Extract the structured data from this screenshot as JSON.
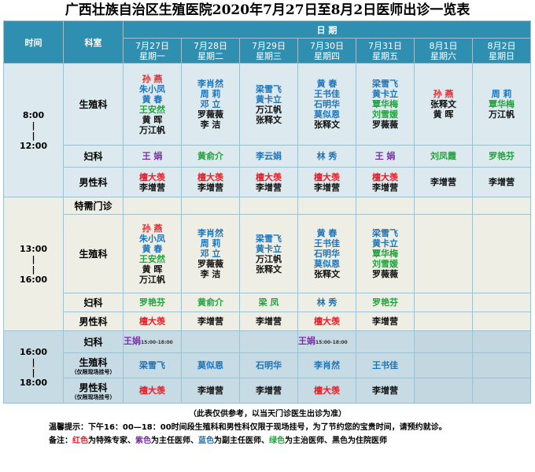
{
  "title": "广西壮族自治区生殖医院2020年7月27日至8月2日医师出诊一览表",
  "header": {
    "time": "时间",
    "dept": "科室",
    "date_label": "日  期",
    "days": [
      {
        "date": "7月27日",
        "week": "星期一"
      },
      {
        "date": "7月28日",
        "week": "星期二"
      },
      {
        "date": "7月29日",
        "week": "星期三"
      },
      {
        "date": "7月30日",
        "week": "星期四"
      },
      {
        "date": "7月31日",
        "week": "星期五"
      },
      {
        "date": "8月1日",
        "week": "星期六"
      },
      {
        "date": "8月2日",
        "week": "星期日"
      }
    ]
  },
  "morning": {
    "time_start": "8:00",
    "time_end": "12:00",
    "rows": [
      {
        "dept": "生殖科",
        "cells": [
          [
            {
              "n": "孙  燕",
              "c": "red"
            },
            {
              "n": "朱小凤",
              "c": "blue"
            },
            {
              "n": "黄  春",
              "c": "blue"
            },
            {
              "n": "王安然",
              "c": "green"
            },
            {
              "n": "黄  晖",
              "c": "black"
            },
            {
              "n": "万江帆",
              "c": "black"
            }
          ],
          [
            {
              "n": "李肖然",
              "c": "blue"
            },
            {
              "n": "周  莉",
              "c": "blue"
            },
            {
              "n": "邓  立",
              "c": "blue"
            },
            {
              "n": "罗薇薇",
              "c": "black"
            },
            {
              "n": "李  洁",
              "c": "black"
            }
          ],
          [
            {
              "n": "梁雪飞",
              "c": "blue"
            },
            {
              "n": "黄卡立",
              "c": "blue"
            },
            {
              "n": "万江帆",
              "c": "black"
            },
            {
              "n": "张释文",
              "c": "black"
            }
          ],
          [
            {
              "n": "黄  春",
              "c": "blue"
            },
            {
              "n": "王书佳",
              "c": "blue"
            },
            {
              "n": "石明华",
              "c": "blue"
            },
            {
              "n": "莫似恩",
              "c": "blue"
            },
            {
              "n": "张释文",
              "c": "black"
            }
          ],
          [
            {
              "n": "梁雪飞",
              "c": "blue"
            },
            {
              "n": "黄卡立",
              "c": "blue"
            },
            {
              "n": "覃华梅",
              "c": "green"
            },
            {
              "n": "刘雪媛",
              "c": "green"
            },
            {
              "n": "罗薇薇",
              "c": "black"
            }
          ],
          [
            {
              "n": "孙  燕",
              "c": "red"
            },
            {
              "n": "张释文",
              "c": "black"
            },
            {
              "n": "黄  晖",
              "c": "black"
            }
          ],
          [
            {
              "n": "周  莉",
              "c": "blue"
            },
            {
              "n": "覃华梅",
              "c": "green"
            },
            {
              "n": "万江帆",
              "c": "black"
            }
          ]
        ]
      },
      {
        "dept": "妇科",
        "cells": [
          [
            {
              "n": "王  娟",
              "c": "purple"
            }
          ],
          [
            {
              "n": "黄俞介",
              "c": "green"
            }
          ],
          [
            {
              "n": "李云娟",
              "c": "blue"
            }
          ],
          [
            {
              "n": "林  秀",
              "c": "blue"
            }
          ],
          [
            {
              "n": "王  娟",
              "c": "purple"
            }
          ],
          [
            {
              "n": "刘凤霞",
              "c": "green"
            }
          ],
          [
            {
              "n": "罗艳芬",
              "c": "green"
            }
          ]
        ]
      },
      {
        "dept": "男性科",
        "cells": [
          [
            {
              "n": "檀大羡",
              "c": "red"
            },
            {
              "n": "李增营",
              "c": "black"
            }
          ],
          [
            {
              "n": "檀大羡",
              "c": "red"
            },
            {
              "n": "李增营",
              "c": "black"
            }
          ],
          [
            {
              "n": "檀大羡",
              "c": "red"
            },
            {
              "n": "李增营",
              "c": "black"
            }
          ],
          [
            {
              "n": "檀大羡",
              "c": "red"
            },
            {
              "n": "李增营",
              "c": "black"
            }
          ],
          [
            {
              "n": "檀大羡",
              "c": "red"
            },
            {
              "n": "李增营",
              "c": "black"
            }
          ],
          [
            {
              "n": "李增营",
              "c": "black"
            }
          ],
          [
            {
              "n": "李增营",
              "c": "black"
            }
          ]
        ]
      }
    ]
  },
  "afternoon": {
    "time_start": "13:00",
    "time_end": "16:00",
    "special_label": "特需门诊",
    "rows": [
      {
        "dept": "生殖科",
        "cells": [
          [
            {
              "n": "孙  燕",
              "c": "red"
            },
            {
              "n": "朱小凤",
              "c": "blue"
            },
            {
              "n": "黄  春",
              "c": "blue"
            },
            {
              "n": "王安然",
              "c": "green"
            },
            {
              "n": "黄  晖",
              "c": "black"
            },
            {
              "n": "万江帆",
              "c": "black"
            }
          ],
          [
            {
              "n": "李肖然",
              "c": "blue"
            },
            {
              "n": "周  莉",
              "c": "blue"
            },
            {
              "n": "邓  立",
              "c": "blue"
            },
            {
              "n": "罗薇薇",
              "c": "black"
            },
            {
              "n": "李  洁",
              "c": "black"
            }
          ],
          [
            {
              "n": "梁雪飞",
              "c": "blue"
            },
            {
              "n": "黄卡立",
              "c": "blue"
            },
            {
              "n": "万江帆",
              "c": "black"
            },
            {
              "n": "张释文",
              "c": "black"
            }
          ],
          [
            {
              "n": "黄  春",
              "c": "blue"
            },
            {
              "n": "王书佳",
              "c": "blue"
            },
            {
              "n": "石明华",
              "c": "blue"
            },
            {
              "n": "莫似恩",
              "c": "blue"
            },
            {
              "n": "张释文",
              "c": "black"
            }
          ],
          [
            {
              "n": "梁雪飞",
              "c": "blue"
            },
            {
              "n": "黄卡立",
              "c": "blue"
            },
            {
              "n": "覃华梅",
              "c": "green"
            },
            {
              "n": "刘雪媛",
              "c": "green"
            },
            {
              "n": "罗薇薇",
              "c": "black"
            }
          ],
          [],
          []
        ]
      },
      {
        "dept": "妇科",
        "cells": [
          [
            {
              "n": "罗艳芬",
              "c": "green"
            }
          ],
          [
            {
              "n": "黄俞介",
              "c": "green"
            }
          ],
          [
            {
              "n": "梁  凤",
              "c": "green"
            }
          ],
          [
            {
              "n": "林  秀",
              "c": "blue"
            }
          ],
          [
            {
              "n": "罗艳芬",
              "c": "green"
            }
          ],
          [],
          []
        ]
      },
      {
        "dept": "男性科",
        "cells": [
          [
            {
              "n": "檀大羡",
              "c": "red"
            }
          ],
          [
            {
              "n": "李增营",
              "c": "black"
            }
          ],
          [
            {
              "n": "李增营",
              "c": "black"
            }
          ],
          [
            {
              "n": "檀大羡",
              "c": "red"
            }
          ],
          [
            {
              "n": "李增营",
              "c": "black"
            }
          ],
          [],
          []
        ]
      }
    ]
  },
  "evening": {
    "time_start": "16:00",
    "time_end": "18:00",
    "rows": [
      {
        "dept": "妇科",
        "note": "",
        "cells": [
          [
            {
              "n": "王娟",
              "c": "purple",
              "t": "15:00-18:00"
            }
          ],
          [],
          [],
          [
            {
              "n": "王娟",
              "c": "purple",
              "t": "15:00-18:00"
            }
          ],
          [],
          [],
          []
        ]
      },
      {
        "dept": "生殖科",
        "note": "（仅限现场挂号）",
        "cells": [
          [
            {
              "n": "梁雪飞",
              "c": "blue"
            }
          ],
          [
            {
              "n": "莫似恩",
              "c": "blue"
            }
          ],
          [
            {
              "n": "石明华",
              "c": "blue"
            }
          ],
          [
            {
              "n": "李肖然",
              "c": "blue"
            }
          ],
          [
            {
              "n": "王书佳",
              "c": "blue"
            }
          ],
          [],
          []
        ]
      },
      {
        "dept": "男性科",
        "note": "（仅限现场挂号）",
        "cells": [
          [
            {
              "n": "檀大羡",
              "c": "red"
            }
          ],
          [
            {
              "n": "李增营",
              "c": "black"
            }
          ],
          [
            {
              "n": "李增营",
              "c": "black"
            }
          ],
          [
            {
              "n": "檀大羡",
              "c": "red"
            }
          ],
          [
            {
              "n": "李增营",
              "c": "black"
            }
          ],
          [],
          []
        ]
      }
    ]
  },
  "footer": {
    "line1": "（此表仅供参考，以当天门诊医生出诊为准）",
    "line2": "温馨提示：下午16：00—18：00时间段生殖科和男性科仅限于现场挂号，为了节约您的宝贵时间，请预约就诊。",
    "line3_prefix": "备注：",
    "legend": [
      {
        "text": "红色",
        "c": "red",
        "desc": "为特殊专家、"
      },
      {
        "text": "紫色",
        "c": "purple",
        "desc": "为主任医师、"
      },
      {
        "text": "蓝色",
        "c": "blue",
        "desc": "为副主任医师、"
      },
      {
        "text": "绿色",
        "c": "green",
        "desc": "为主治医师、"
      },
      {
        "text": "黑色",
        "c": "black",
        "desc": "为住院医师"
      }
    ]
  },
  "colors": {
    "red": "#e8202a",
    "purple": "#7a2ca8",
    "blue": "#1f73b8",
    "green": "#25a040",
    "black": "#111111",
    "header": "#2e8fb0"
  }
}
